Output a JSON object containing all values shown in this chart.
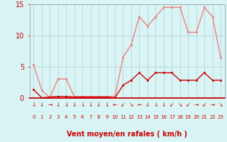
{
  "x": [
    0,
    1,
    2,
    3,
    4,
    5,
    6,
    7,
    8,
    9,
    10,
    11,
    12,
    13,
    14,
    15,
    16,
    17,
    18,
    19,
    20,
    21,
    22,
    23
  ],
  "y_rafales": [
    5.3,
    1.2,
    0.0,
    3.0,
    3.0,
    0.2,
    0.2,
    0.2,
    0.2,
    0.2,
    0.2,
    6.5,
    8.5,
    13.0,
    11.5,
    13.0,
    14.5,
    14.5,
    14.5,
    10.5,
    10.5,
    14.5,
    13.0,
    6.5
  ],
  "y_moyen": [
    1.3,
    0.0,
    0.1,
    0.2,
    0.2,
    0.1,
    0.1,
    0.1,
    0.1,
    0.1,
    0.0,
    2.0,
    2.8,
    4.0,
    2.8,
    4.0,
    4.0,
    4.0,
    2.8,
    2.8,
    2.8,
    4.0,
    2.8,
    2.8
  ],
  "wind_dirs": [
    "↓",
    "↓",
    "→",
    "↓",
    "↓",
    "↓",
    "↓",
    "↓",
    "↓",
    "↓",
    "←",
    "↙",
    "↘",
    "←",
    "↓",
    "↓",
    "↓",
    "↙",
    "↘",
    "↙",
    "→",
    "↙",
    "→",
    "↘"
  ],
  "line_color_rafales": "#f08080",
  "line_color_moyen": "#cc0000",
  "bg_color": "#d8f4f4",
  "grid_color": "#b0d0d0",
  "tick_label_color": "#cc0000",
  "arrow_line_color": "#cc0000",
  "xlabel": "Vent moyen/en rafales ( km/h )",
  "ylim": [
    0,
    15
  ],
  "xlim": [
    -0.5,
    23.5
  ],
  "yticks": [
    0,
    5,
    10,
    15
  ],
  "xticks": [
    0,
    1,
    2,
    3,
    4,
    5,
    6,
    7,
    8,
    9,
    10,
    11,
    12,
    13,
    14,
    15,
    16,
    17,
    18,
    19,
    20,
    21,
    22,
    23
  ]
}
